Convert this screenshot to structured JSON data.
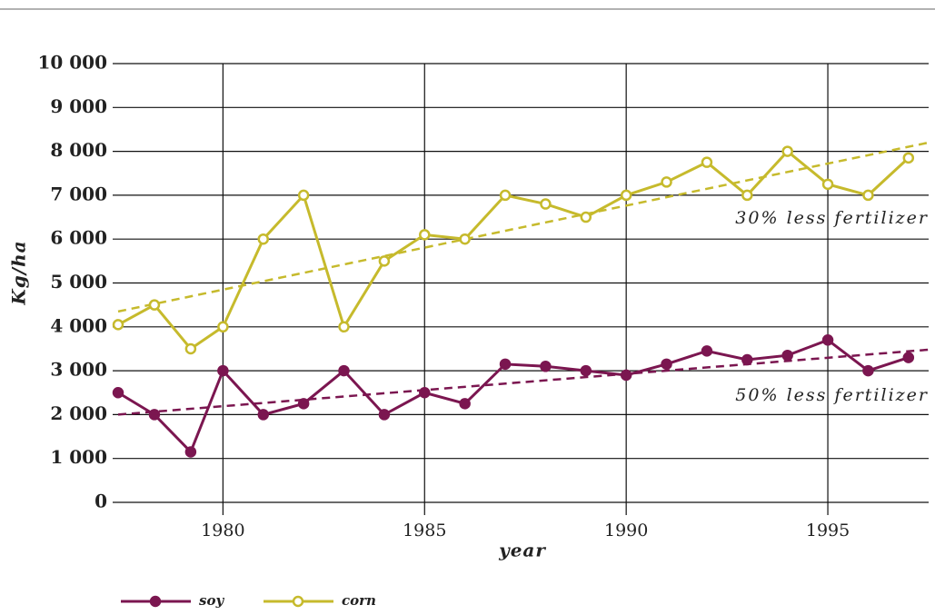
{
  "chart_data": {
    "type": "line",
    "x_label": "year",
    "y_label": "Kg/ha",
    "x": [
      1977.4,
      1978.3,
      1979.2,
      1980,
      1981,
      1982,
      1983,
      1984,
      1985,
      1986,
      1987,
      1988,
      1989,
      1990,
      1991,
      1992,
      1993,
      1994,
      1995,
      1996,
      1997
    ],
    "series": [
      {
        "name": "soy",
        "color": "#7b1650",
        "marker": "filled",
        "values": [
          2500,
          2000,
          1150,
          3000,
          2000,
          2250,
          3000,
          2000,
          2500,
          2250,
          3150,
          3100,
          3000,
          2900,
          3150,
          3450,
          3250,
          3350,
          3700,
          3000,
          3300
        ],
        "trend": [
          2000,
          3480
        ]
      },
      {
        "name": "corn",
        "color": "#c6ba2c",
        "marker": "hollow",
        "values": [
          4050,
          4500,
          3500,
          4000,
          6000,
          7000,
          4000,
          5500,
          6100,
          6000,
          7000,
          6800,
          6500,
          7000,
          7300,
          7750,
          7000,
          8000,
          7250,
          7000,
          7850
        ],
        "trend": [
          4350,
          8200
        ]
      }
    ],
    "annotations": [
      "30% less fertilizer",
      "50% less fertilizer"
    ],
    "xlim": [
      1977.4,
      1997.5
    ],
    "xticks": [
      1980,
      1985,
      1990,
      1995
    ],
    "ylim": [
      0,
      10000
    ],
    "yticks": [
      0,
      {
        "value": 1000,
        "label": "1 000"
      },
      {
        "value": 2000,
        "label": "2 000"
      },
      {
        "value": 3000,
        "label": "3 000"
      },
      {
        "value": 4000,
        "label": "4 000"
      },
      {
        "value": 5000,
        "label": "5 000"
      },
      {
        "value": 6000,
        "label": "6 000"
      },
      {
        "value": 7000,
        "label": "7 000"
      },
      {
        "value": 8000,
        "label": "8 000"
      },
      {
        "value": 9000,
        "label": "9 000"
      },
      {
        "value": 10000,
        "label": "10 000"
      }
    ],
    "grid": true
  }
}
